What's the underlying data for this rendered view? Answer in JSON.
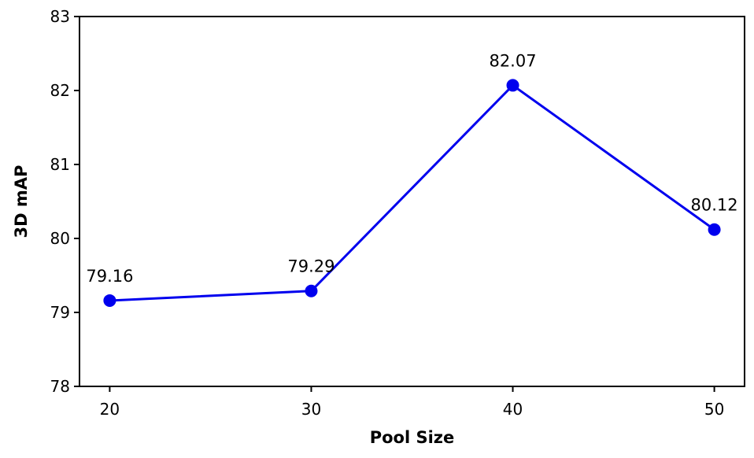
{
  "chart_data": {
    "type": "line",
    "title": "",
    "xlabel": "Pool Size",
    "ylabel": "3D mAP",
    "xlim": [
      18.5,
      51.5
    ],
    "ylim": [
      78,
      83
    ],
    "xticks": [
      "20",
      "30",
      "40",
      "50"
    ],
    "yticks": [
      "78",
      "79",
      "80",
      "81",
      "82",
      "83"
    ],
    "grid": false,
    "legend": "none",
    "series": [
      {
        "color": "#0000ee",
        "points": [
          {
            "x": 20,
            "y": 79.16,
            "label": "79.16"
          },
          {
            "x": 30,
            "y": 79.29,
            "label": "79.29"
          },
          {
            "x": 40,
            "y": 82.07,
            "label": "82.07"
          },
          {
            "x": 50,
            "y": 80.12,
            "label": "80.12"
          }
        ]
      }
    ]
  }
}
